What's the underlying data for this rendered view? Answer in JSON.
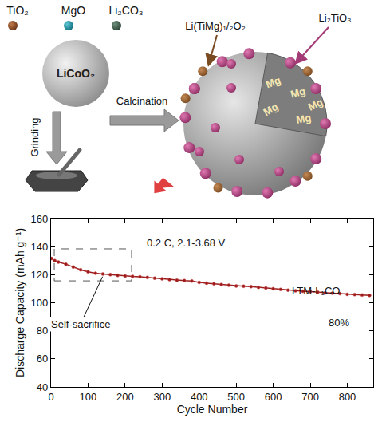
{
  "diagram": {
    "reagents": [
      "TiO₂",
      "MgO",
      "Li₂CO₃"
    ],
    "core": "LiCoO₂",
    "steps": [
      "Grinding",
      "Calcination"
    ],
    "coating_labels": [
      "Li(TiMg)₁/₂O₂",
      "Li₂TiO₃"
    ],
    "dopant_labels": [
      "Mg",
      "Mg",
      "Mg",
      "Mg",
      "Mg"
    ]
  },
  "chart_data": {
    "type": "line",
    "x_label": "Cycle Number",
    "y_label": "Discharge Capacity (mAh g⁻¹)",
    "x": [
      1,
      10,
      20,
      40,
      60,
      80,
      100,
      120,
      140,
      160,
      180,
      200,
      220,
      240,
      260,
      280,
      300,
      320,
      340,
      360,
      380,
      400,
      420,
      440,
      460,
      480,
      500,
      520,
      540,
      560,
      580,
      600,
      620,
      640,
      660,
      680,
      700,
      720,
      740,
      760,
      780,
      800,
      820,
      840,
      860
    ],
    "series": [
      {
        "name": "LTM-L₁CO",
        "color": "#9b1c1c",
        "marker": "circle",
        "line_style": "solid",
        "values": [
          131.5,
          130,
          129,
          127.5,
          125.5,
          123.5,
          122,
          121,
          120.5,
          120,
          119.5,
          119,
          118.8,
          118.5,
          118,
          117.5,
          117,
          116.5,
          116,
          115.8,
          115.5,
          114.5,
          114,
          113.5,
          113,
          112.5,
          112,
          111.8,
          111.5,
          111,
          110.5,
          110,
          109.5,
          109,
          108.5,
          108.2,
          108,
          107.5,
          107,
          106.8,
          106.5,
          106,
          105.8,
          105.5,
          105.2
        ]
      }
    ],
    "xlim": [
      0,
      870
    ],
    "xticks": [
      0,
      100,
      200,
      300,
      400,
      500,
      600,
      700,
      800
    ],
    "ylim": [
      40,
      160
    ],
    "yticks": [
      40,
      60,
      80,
      100,
      120,
      140,
      160
    ],
    "annotations": [
      "0.2 C, 2.1-3.68 V",
      "80%",
      "Self-sacrifice"
    ],
    "grid": false
  }
}
